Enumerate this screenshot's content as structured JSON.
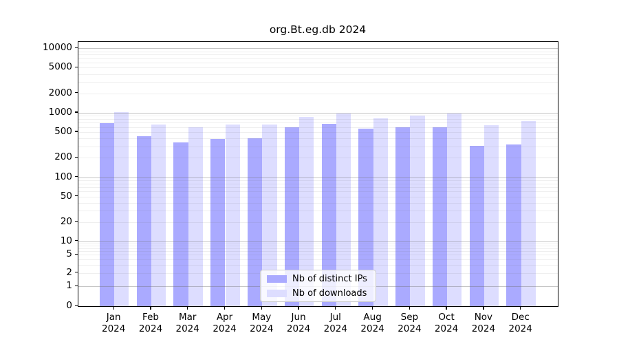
{
  "title": "org.Bt.eg.db 2024",
  "chart_data": {
    "type": "bar",
    "title": "org.Bt.eg.db 2024",
    "categories": [
      "Jan",
      "Feb",
      "Mar",
      "Apr",
      "May",
      "Jun",
      "Jul",
      "Aug",
      "Sep",
      "Oct",
      "Nov",
      "Dec"
    ],
    "category_year": "2024",
    "series": [
      {
        "name": "Nb of distinct IPs",
        "color": "#aaaaff",
        "values": [
          690,
          435,
          345,
          390,
          400,
          600,
          675,
          560,
          590,
          595,
          305,
          325
        ]
      },
      {
        "name": "Nb of downloads",
        "color": "#ddddff",
        "values": [
          1025,
          650,
          590,
          650,
          650,
          855,
          960,
          820,
          900,
          975,
          635,
          735
        ]
      }
    ],
    "xlabel": "",
    "ylabel": "",
    "yscale": "log",
    "yticks": [
      0,
      1,
      2,
      5,
      10,
      20,
      50,
      100,
      200,
      500,
      1000,
      2000,
      5000,
      10000
    ],
    "ylim": [
      0,
      12500
    ],
    "grid": true,
    "legend_position": "lower center",
    "colors": {
      "axis": "#000000",
      "grid_major": "#c9c9c9",
      "grid_minor": "#ededed",
      "background": "#ffffff"
    }
  }
}
